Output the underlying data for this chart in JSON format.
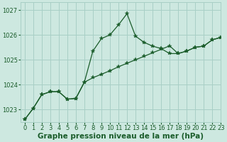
{
  "title": "Graphe pression niveau de la mer (hPa)",
  "background_color": "#cde8e0",
  "grid_color": "#a8cfc6",
  "line_color": "#1a5c2a",
  "xlim": [
    -0.5,
    23
  ],
  "ylim": [
    1022.5,
    1027.3
  ],
  "yticks": [
    1023,
    1024,
    1025,
    1026,
    1027
  ],
  "xticks": [
    0,
    1,
    2,
    3,
    4,
    5,
    6,
    7,
    8,
    9,
    10,
    11,
    12,
    13,
    14,
    15,
    16,
    17,
    18,
    19,
    20,
    21,
    22,
    23
  ],
  "series1_x": [
    0,
    1,
    2,
    3,
    4,
    5,
    6,
    7,
    8,
    9,
    10,
    11,
    12,
    13,
    14,
    15,
    16,
    17,
    18,
    19,
    20,
    21,
    22,
    23
  ],
  "series1_y": [
    1022.6,
    1023.05,
    1023.6,
    1023.72,
    1023.72,
    1023.42,
    1023.45,
    1024.1,
    1025.35,
    1025.85,
    1026.0,
    1026.4,
    1026.85,
    1025.95,
    1025.7,
    1025.55,
    1025.45,
    1025.25,
    1025.25,
    1025.35,
    1025.5,
    1025.55,
    1025.8,
    1025.9
  ],
  "series2_x": [
    0,
    1,
    2,
    3,
    4,
    5,
    6,
    7,
    8,
    9,
    10,
    11,
    12,
    13,
    14,
    15,
    16,
    17,
    18,
    19,
    20,
    21,
    22,
    23
  ],
  "series2_y": [
    1022.6,
    1023.05,
    1023.6,
    1023.72,
    1023.72,
    1023.42,
    1023.45,
    1024.1,
    1024.28,
    1024.42,
    1024.56,
    1024.72,
    1024.86,
    1025.0,
    1025.14,
    1025.28,
    1025.42,
    1025.56,
    1025.25,
    1025.35,
    1025.5,
    1025.55,
    1025.8,
    1025.9
  ],
  "title_fontsize": 7.5,
  "tick_fontsize": 6.0
}
